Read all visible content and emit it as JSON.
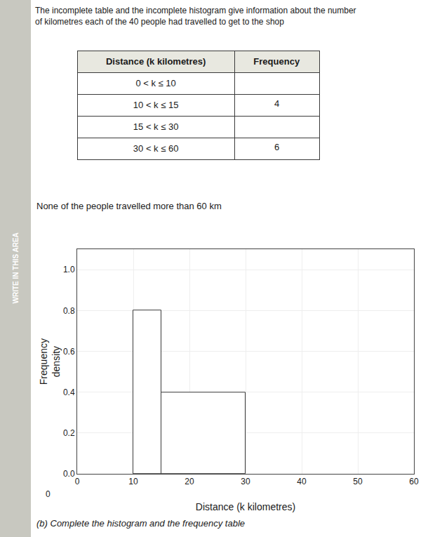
{
  "chart_data": {
    "type": "histogram",
    "title": "The incomplete table and the incomplete histogram give information about the number\nof kilometres each of the 40 people had travelled to get to the shop",
    "x_label": "Distance (k kilometres)",
    "y_label": "Frequency\ndensity",
    "bins": [
      10,
      15,
      30
    ],
    "values": [
      0.8,
      0.4
    ],
    "color": "white",
    "xlim": [
      0,
      60
    ],
    "ylim": [
      0,
      1.1
    ],
    "xticks": [
      0,
      10,
      20,
      30,
      40,
      50,
      60
    ],
    "yticks": [
      {
        "value": 0,
        "label": "0.0"
      },
      0.2,
      0.4,
      0.6,
      0.8,
      {
        "value": 1,
        "label": "1.0"
      }
    ],
    "grid": true,
    "table": {
      "headers": [
        "Distance (k kilometres)",
        "Frequency"
      ],
      "rows": [
        [
          "0 < k ≤ 10",
          null
        ],
        [
          "10 < k ≤ 15",
          "4"
        ],
        [
          "15 < k ≤ 30",
          null
        ],
        [
          "30 < k ≤ 60",
          "6"
        ]
      ]
    },
    "annotations": [
      "None of the people travelled more than 60 km",
      "(b) Complete the histogram and the frequency table",
      "0",
      "WRITE IN THIS AREA"
    ]
  }
}
